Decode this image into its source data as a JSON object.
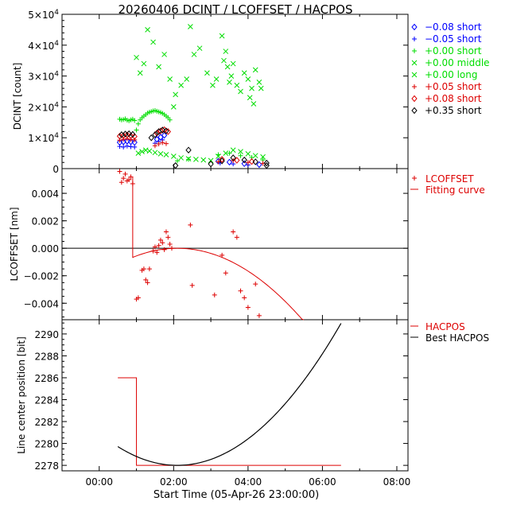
{
  "title": "20260406 DCINT / LCOFFSET / HACPOS",
  "xlabel": "Start Time (05-Apr-26 23:00:00)",
  "xticks": [
    "00:00",
    "02:00",
    "04:00",
    "06:00",
    "08:00"
  ],
  "colors": {
    "blue": "#0000ff",
    "green": "#00dd00",
    "red": "#dd0000",
    "black": "#000000"
  },
  "chart_data": [
    {
      "type": "scatter",
      "ylabel": "DCINT [count]",
      "xlim_hours": [
        -1,
        8.3
      ],
      "ylim": [
        0,
        50000
      ],
      "yticks": [
        {
          "v": 0,
          "m": "0",
          "e": ""
        },
        {
          "v": 10000,
          "m": "1×10",
          "e": "4"
        },
        {
          "v": 20000,
          "m": "2×10",
          "e": "4"
        },
        {
          "v": 30000,
          "m": "3×10",
          "e": "4"
        },
        {
          "v": 40000,
          "m": "4×10",
          "e": "4"
        },
        {
          "v": 50000,
          "m": "5×10",
          "e": "4"
        }
      ],
      "legend_position": "right",
      "series": [
        {
          "name": "−0.08 short",
          "symbol": "diamond",
          "color": "#0000ff",
          "x": [
            0.55,
            0.65,
            0.75,
            0.85,
            0.95,
            1.55,
            1.65,
            1.75,
            3.2,
            3.5,
            3.9,
            4.3
          ],
          "y": [
            8500,
            8700,
            8900,
            8700,
            8500,
            9500,
            10200,
            10800,
            2400,
            2100,
            1600,
            1300
          ]
        },
        {
          "name": "−0.05 short",
          "symbol": "plus",
          "color": "#0000ff",
          "x": [
            0.55,
            0.65,
            0.75,
            0.85,
            0.95,
            1.5,
            1.6,
            1.7,
            3.25,
            3.6,
            4.0
          ],
          "y": [
            7200,
            7000,
            7300,
            7100,
            7000,
            8200,
            8800,
            9300,
            1800,
            1500,
            1200
          ]
        },
        {
          "name": "+0.00 short",
          "symbol": "plus",
          "color": "#00dd00",
          "x": [
            0.55,
            0.6,
            0.65,
            0.7,
            0.75,
            0.8,
            0.85,
            0.9,
            0.95,
            1.0,
            1.05,
            1.1,
            1.15,
            1.2,
            1.25,
            1.3,
            1.35,
            1.4,
            1.45,
            1.5,
            1.55,
            1.6,
            1.65,
            1.7,
            1.75,
            1.8,
            1.85,
            1.9,
            2.1,
            2.4,
            3.2,
            3.5,
            3.8,
            4.1,
            4.4
          ],
          "y": [
            16000,
            15800,
            15900,
            16100,
            15700,
            15500,
            15800,
            16000,
            15600,
            12500,
            14500,
            15800,
            16500,
            17000,
            17500,
            18000,
            18300,
            18500,
            18700,
            18800,
            18600,
            18400,
            18200,
            17900,
            17500,
            17000,
            16500,
            15800,
            2500,
            3000,
            4500,
            5000,
            4200,
            3600,
            2800
          ]
        },
        {
          "name": "+0.00 middle",
          "symbol": "x",
          "color": "#00dd00",
          "x": [
            1.0,
            1.1,
            1.2,
            1.3,
            1.45,
            1.6,
            1.75,
            1.9,
            2.0,
            2.05,
            2.2,
            2.35,
            2.45,
            2.55,
            2.7,
            2.9,
            3.05,
            3.15,
            3.3,
            3.35,
            3.4,
            3.45,
            3.5,
            3.55,
            3.6,
            3.7,
            3.8,
            3.9,
            4.0,
            4.05,
            4.1,
            4.15,
            4.2,
            4.3,
            4.35
          ],
          "y": [
            36000,
            31000,
            34000,
            45000,
            41000,
            33000,
            37000,
            29000,
            20000,
            24000,
            27000,
            29000,
            46000,
            37000,
            39000,
            31000,
            27000,
            29000,
            43000,
            35000,
            38000,
            33000,
            28000,
            30000,
            34000,
            27000,
            25000,
            31000,
            29000,
            23000,
            26000,
            21000,
            32000,
            28000,
            26000
          ]
        },
        {
          "name": "+0.00 long",
          "symbol": "x",
          "color": "#00dd00",
          "x": [
            1.05,
            1.15,
            1.25,
            1.35,
            1.5,
            1.65,
            1.8,
            2.0,
            2.2,
            2.4,
            2.6,
            2.8,
            3.0,
            3.2,
            3.4,
            3.6,
            3.8,
            4.0,
            4.2,
            4.4
          ],
          "y": [
            5000,
            5500,
            6000,
            5700,
            5200,
            4800,
            4500,
            4000,
            3500,
            3200,
            3000,
            2800,
            2600,
            4000,
            5000,
            6000,
            5500,
            4800,
            4200,
            3800
          ]
        },
        {
          "name": "+0.05 short",
          "symbol": "plus",
          "color": "#dd0000",
          "x": [
            0.55,
            0.65,
            0.75,
            0.85,
            0.95,
            1.5,
            1.6,
            1.7,
            1.8,
            3.2,
            3.6,
            4.0,
            4.4
          ],
          "y": [
            9200,
            9500,
            9700,
            9400,
            9300,
            7400,
            8000,
            8400,
            8100,
            2200,
            2600,
            2000,
            1700
          ]
        },
        {
          "name": "+0.08 short",
          "symbol": "diamond",
          "color": "#dd0000",
          "x": [
            0.55,
            0.65,
            0.75,
            0.85,
            0.95,
            1.55,
            1.65,
            1.75,
            1.85,
            3.3,
            3.7,
            4.1
          ],
          "y": [
            10500,
            10700,
            10900,
            10600,
            10400,
            11500,
            12200,
            12600,
            12000,
            3000,
            2700,
            2300
          ]
        },
        {
          "name": "+0.35 short",
          "symbol": "diamond",
          "color": "#000000",
          "x": [
            0.6,
            0.7,
            0.8,
            0.9,
            1.4,
            1.5,
            1.6,
            1.7,
            1.8,
            2.05,
            2.4,
            3.0,
            3.3,
            3.6,
            3.9,
            4.2,
            4.5,
            4.5
          ],
          "y": [
            11000,
            11200,
            11300,
            11100,
            10000,
            11000,
            12000,
            12500,
            12200,
            1000,
            6000,
            1500,
            2500,
            3500,
            2800,
            2200,
            1800,
            1000
          ]
        }
      ]
    },
    {
      "type": "scatter",
      "ylabel": "LCOFFSET [nm]",
      "xlim_hours": [
        -1,
        8.3
      ],
      "ylim": [
        -0.0052,
        0.0058
      ],
      "yticks": [
        -0.004,
        -0.002,
        0.0,
        0.002,
        0.004
      ],
      "ytick_labels": [
        "−0.004",
        "−0.002",
        "0.000",
        "0.002",
        "0.004"
      ],
      "zero_line": true,
      "legend_position": "right",
      "points": {
        "name": "LCOFFSET",
        "color": "#dd0000",
        "x": [
          0.55,
          0.6,
          0.65,
          0.7,
          0.75,
          0.8,
          0.85,
          0.9,
          1.0,
          1.05,
          1.15,
          1.2,
          1.25,
          1.3,
          1.35,
          1.45,
          1.5,
          1.55,
          1.6,
          1.65,
          1.7,
          1.75,
          1.8,
          1.85,
          1.9,
          1.95,
          2.45,
          2.5,
          3.1,
          3.3,
          3.4,
          3.6,
          3.7,
          3.8,
          3.9,
          4.0,
          4.2,
          4.3
        ],
        "y": [
          0.0056,
          0.0048,
          0.0051,
          0.0054,
          0.0049,
          0.005,
          0.0052,
          0.0047,
          -0.0037,
          -0.0036,
          -0.0016,
          -0.0015,
          -0.0023,
          -0.0025,
          -0.0015,
          -0.0002,
          0.0001,
          -0.0003,
          0.0002,
          0.0006,
          0.0004,
          -0.0001,
          0.0012,
          0.0008,
          0.0003,
          0.0,
          0.0017,
          -0.0027,
          -0.0034,
          -0.0005,
          -0.0018,
          0.0012,
          0.0008,
          -0.0031,
          -0.0036,
          -0.0043,
          -0.0026,
          -0.0049
        ]
      },
      "fit": {
        "name": "Fitting curve",
        "color": "#dd0000",
        "jump_x": [
          0.9,
          1.0
        ],
        "jump_y": [
          0.0052,
          -0.0007
        ],
        "parabola": {
          "x0": 2.1,
          "y0": 0.0,
          "a": -0.00046
        },
        "x_end": 5.5
      }
    },
    {
      "type": "line",
      "ylabel": "Line center position [bit]",
      "xlim_hours": [
        -1,
        8.3
      ],
      "ylim": [
        2277.5,
        2291.3
      ],
      "yticks": [
        2278,
        2280,
        2282,
        2284,
        2286,
        2288,
        2290
      ],
      "legend_position": "right",
      "series": [
        {
          "name": "HACPOS",
          "color": "#dd0000",
          "x": [
            0.5,
            1.0,
            1.0,
            6.5
          ],
          "y": [
            2286,
            2286,
            2278,
            2278
          ]
        },
        {
          "name": "Best HACPOS",
          "color": "#000000",
          "parabola": {
            "x0": 2.1,
            "y0": 2278.0,
            "a": 0.67
          },
          "x_start": 0.5,
          "x_end": 6.5
        }
      ]
    }
  ]
}
